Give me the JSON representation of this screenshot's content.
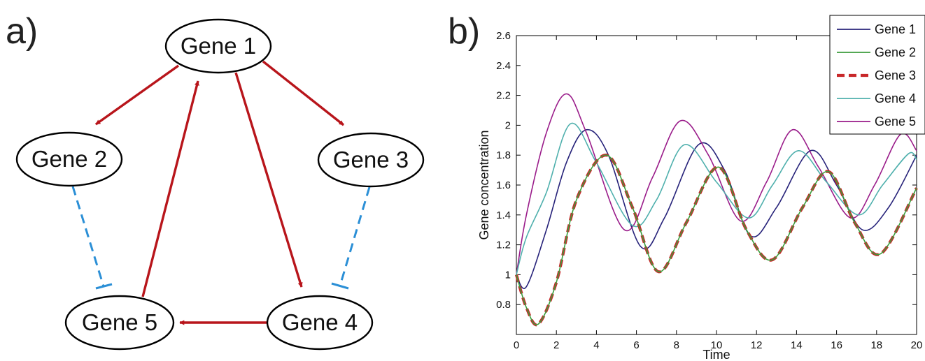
{
  "panel_a": {
    "label": "a)",
    "nodes": {
      "gene1": "Gene 1",
      "gene2": "Gene 2",
      "gene3": "Gene 3",
      "gene4": "Gene 4",
      "gene5": "Gene 5"
    },
    "edges": [
      {
        "from": "Gene 1",
        "to": "Gene 2",
        "type": "activation"
      },
      {
        "from": "Gene 1",
        "to": "Gene 3",
        "type": "activation"
      },
      {
        "from": "Gene 1",
        "to": "Gene 4",
        "type": "activation"
      },
      {
        "from": "Gene 4",
        "to": "Gene 5",
        "type": "activation"
      },
      {
        "from": "Gene 5",
        "to": "Gene 1",
        "type": "activation"
      },
      {
        "from": "Gene 2",
        "to": "Gene 5",
        "type": "inhibition"
      },
      {
        "from": "Gene 3",
        "to": "Gene 4",
        "type": "inhibition"
      }
    ],
    "colors": {
      "activation": "#b8151b",
      "inhibition": "#2b8fd6"
    }
  },
  "panel_b": {
    "label": "b)"
  },
  "chart_data": {
    "type": "line",
    "xlabel": "Time",
    "ylabel": "Gene concentration",
    "xlim": [
      0,
      20
    ],
    "ylim": [
      0.6,
      2.6
    ],
    "xticks": [
      "0",
      "2",
      "4",
      "6",
      "8",
      "10",
      "12",
      "14",
      "16",
      "18",
      "20"
    ],
    "yticks": [
      "0.8",
      "1",
      "1.2",
      "1.4",
      "1.6",
      "1.8",
      "2",
      "2.2",
      "2.4",
      "2.6"
    ],
    "grid": false,
    "legend": "top-right",
    "series": [
      {
        "name": "Gene 1",
        "color": "#27237a",
        "style": "solid",
        "x": [
          0,
          0.5,
          1.5,
          2.5,
          3.5,
          4.6,
          6.2,
          7.4,
          9.1,
          10.4,
          11.7,
          13.0,
          14.7,
          16.0,
          17.3,
          18.6,
          20.0
        ],
        "y": [
          1.0,
          0.92,
          1.3,
          1.75,
          1.97,
          1.8,
          1.19,
          1.38,
          1.87,
          1.7,
          1.26,
          1.45,
          1.83,
          1.6,
          1.3,
          1.45,
          1.8
        ]
      },
      {
        "name": "Gene 2",
        "color": "#3c9c3c",
        "style": "solid",
        "x": [
          0,
          0.5,
          1.1,
          2.0,
          3.0,
          4.5,
          5.8,
          7.1,
          8.5,
          10.1,
          11.5,
          12.8,
          14.3,
          15.6,
          16.9,
          18.2,
          20.0
        ],
        "y": [
          1.0,
          0.78,
          0.67,
          0.95,
          1.5,
          1.8,
          1.45,
          1.02,
          1.35,
          1.72,
          1.3,
          1.1,
          1.45,
          1.69,
          1.35,
          1.14,
          1.58
        ]
      },
      {
        "name": "Gene 3",
        "color": "#c8282a",
        "style": "dashed",
        "x": [
          0,
          0.5,
          1.1,
          2.0,
          3.0,
          4.5,
          5.8,
          7.1,
          8.5,
          10.1,
          11.5,
          12.8,
          14.3,
          15.6,
          16.9,
          18.2,
          20.0
        ],
        "y": [
          1.0,
          0.78,
          0.67,
          0.95,
          1.5,
          1.8,
          1.45,
          1.02,
          1.35,
          1.72,
          1.3,
          1.1,
          1.45,
          1.69,
          1.35,
          1.14,
          1.58
        ]
      },
      {
        "name": "Gene 4",
        "color": "#4fb0ad",
        "style": "solid",
        "x": [
          0,
          0.5,
          1.5,
          2.7,
          4.0,
          5.8,
          7.0,
          8.4,
          10.0,
          11.6,
          12.8,
          14.1,
          15.5,
          17.1,
          18.3,
          19.6,
          20.0
        ],
        "y": [
          1.0,
          1.25,
          1.55,
          2.01,
          1.75,
          1.33,
          1.5,
          1.87,
          1.62,
          1.38,
          1.6,
          1.83,
          1.62,
          1.4,
          1.6,
          1.81,
          1.77
        ]
      },
      {
        "name": "Gene 5",
        "color": "#9a1c8a",
        "style": "solid",
        "x": [
          0,
          0.5,
          1.5,
          2.5,
          3.5,
          5.4,
          6.8,
          8.2,
          9.6,
          11.2,
          12.5,
          13.8,
          15.1,
          16.7,
          17.9,
          19.2,
          20.0
        ],
        "y": [
          1.0,
          1.4,
          1.95,
          2.21,
          1.95,
          1.3,
          1.65,
          2.03,
          1.8,
          1.36,
          1.62,
          1.97,
          1.72,
          1.38,
          1.6,
          1.94,
          1.83
        ]
      }
    ]
  }
}
